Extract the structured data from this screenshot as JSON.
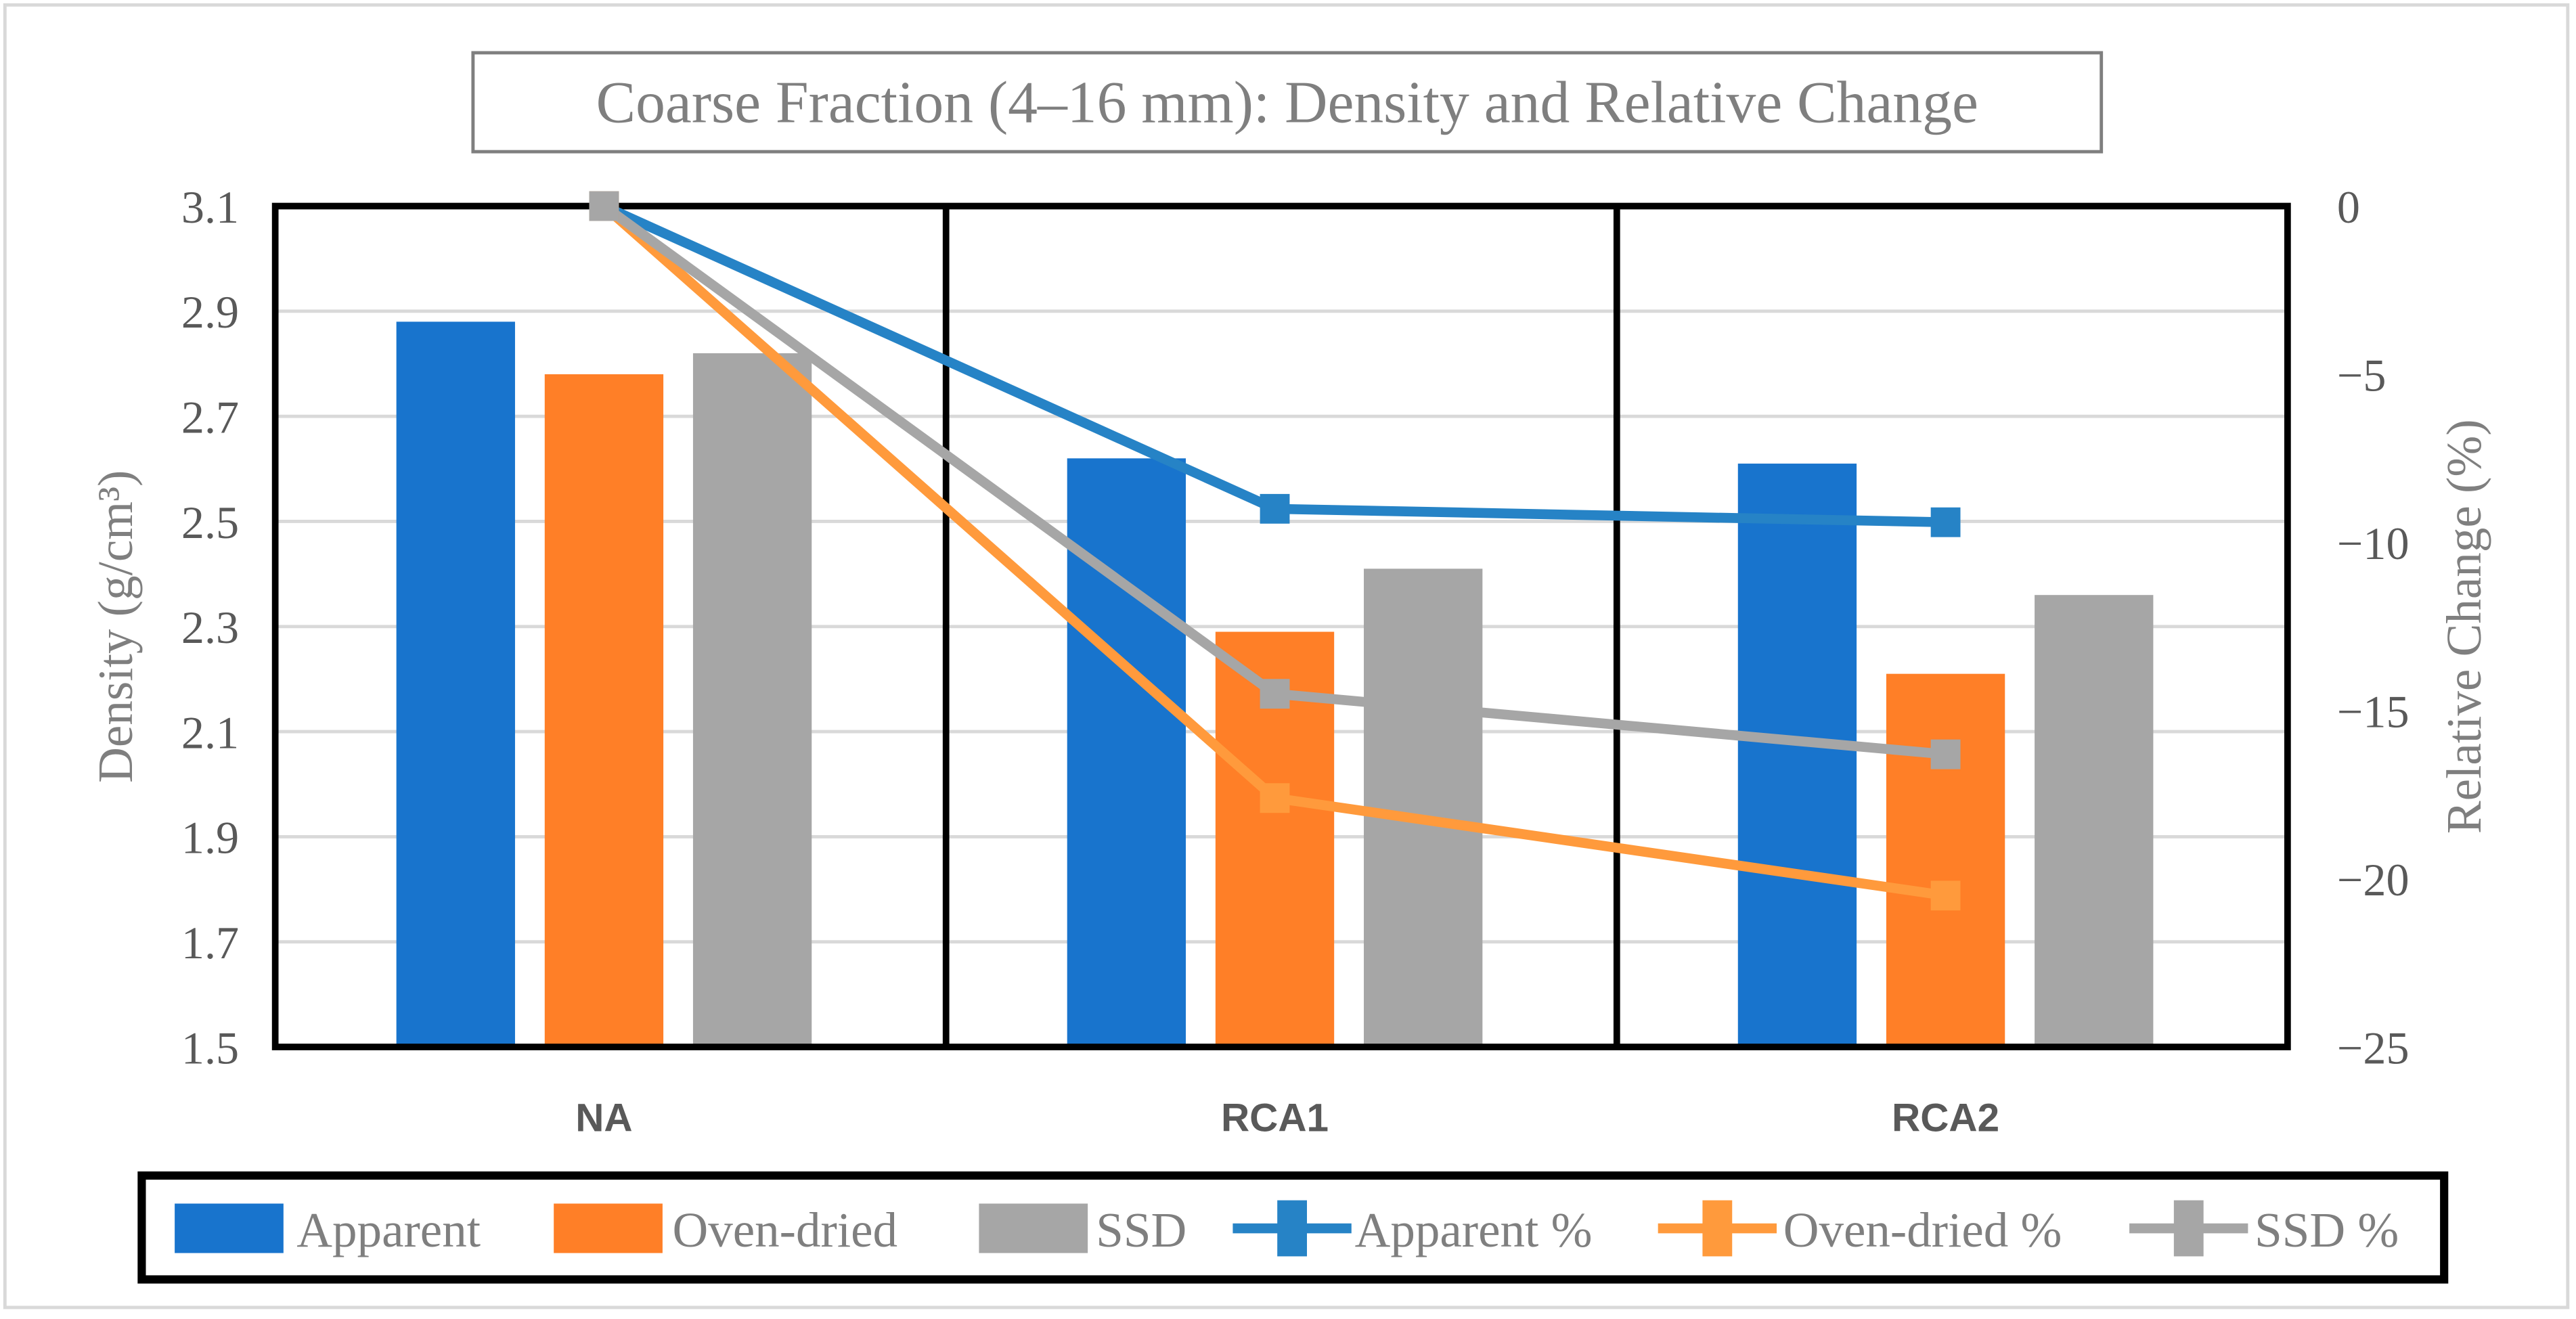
{
  "chart_data": {
    "type": "bar+line",
    "title": "Coarse Fraction (4–16 mm): Density and Relative Change",
    "categories": [
      "NA",
      "RCA1",
      "RCA2"
    ],
    "ylabel": "Density (g/cm³)",
    "y2label": "Relative Change (%)",
    "ylim": [
      1.5,
      3.1
    ],
    "y2lim": [
      -25,
      0
    ],
    "yticks": [
      "1.5",
      "1.7",
      "1.9",
      "2.1",
      "2.3",
      "2.5",
      "2.7",
      "2.9",
      "3.1"
    ],
    "y2ticks": [
      "−25",
      "−20",
      "−15",
      "−10",
      "−5",
      "0"
    ],
    "grid": true,
    "legend_position": "bottom",
    "bar_series": [
      {
        "name": "Apparent",
        "color": "#1874CD",
        "values": [
          2.88,
          2.62,
          2.61
        ]
      },
      {
        "name": "Oven-dried",
        "color": "#FF7F27",
        "values": [
          2.78,
          2.29,
          2.21
        ]
      },
      {
        "name": "SSD",
        "color": "#A6A6A6",
        "values": [
          2.82,
          2.41,
          2.36
        ]
      }
    ],
    "line_series": [
      {
        "name": "Apparent %",
        "color": "#2683C6",
        "values": [
          0,
          -9.0,
          -9.4
        ]
      },
      {
        "name": "Oven-dried %",
        "color": "#FF9A3C",
        "values": [
          0,
          -17.6,
          -20.5
        ]
      },
      {
        "name": "SSD %",
        "color": "#A6A6A6",
        "values": [
          0,
          -14.5,
          -16.3
        ]
      }
    ]
  }
}
